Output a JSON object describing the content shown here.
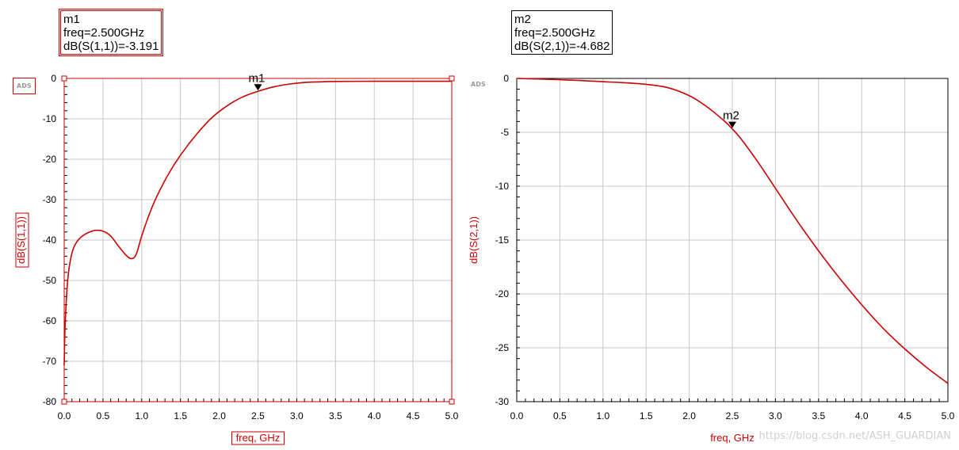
{
  "accent_color": "#cc0000",
  "charts": {
    "left": {
      "marker": {
        "name": "m1",
        "line1": "m1",
        "line2": "freq=2.500GHz",
        "line3": "dB(S(1,1))=-3.191"
      },
      "badge": "ADS"
    },
    "right": {
      "marker": {
        "name": "m2",
        "line1": "m2",
        "line2": "freq=2.500GHz",
        "line3": "dB(S(2,1))=-4.682"
      },
      "badge": "ADS"
    }
  },
  "watermark": "https://blog.csdn.net/ASH_GUARDIAN",
  "chart_data": [
    {
      "type": "line",
      "title": "",
      "xlabel": "freq, GHz",
      "ylabel": "dB(S(1,1))",
      "xlim": [
        0,
        5
      ],
      "ylim": [
        -80,
        0
      ],
      "xticks": [
        0.0,
        0.5,
        1.0,
        1.5,
        2.0,
        2.5,
        3.0,
        3.5,
        4.0,
        4.5,
        5.0
      ],
      "yticks": [
        0,
        -10,
        -20,
        -30,
        -40,
        -50,
        -60,
        -70,
        -80
      ],
      "grid": true,
      "color": "#cc0000",
      "marker": {
        "label": "m1",
        "x": 2.5,
        "y": -3.191
      },
      "series": [
        {
          "x": [
            0.0,
            0.01,
            0.03,
            0.05,
            0.08,
            0.12,
            0.18,
            0.25,
            0.33,
            0.4,
            0.5,
            0.6,
            0.7,
            0.8,
            0.87,
            0.93,
            1.0,
            1.1,
            1.2,
            1.35,
            1.5,
            1.7,
            1.9,
            2.1,
            2.3,
            2.5,
            2.7,
            2.9,
            3.1,
            3.3,
            3.5,
            4.0,
            4.5,
            5.0
          ],
          "values": [
            -71,
            -62,
            -54,
            -49,
            -45,
            -42,
            -40,
            -38.8,
            -38,
            -37.6,
            -37.8,
            -39,
            -41.5,
            -43.8,
            -44.6,
            -43.5,
            -39,
            -33.5,
            -29,
            -23.5,
            -19,
            -14,
            -9.8,
            -6.8,
            -4.6,
            -3.191,
            -2.1,
            -1.4,
            -1.0,
            -0.85,
            -0.75,
            -0.7,
            -0.7,
            -0.7
          ]
        }
      ]
    },
    {
      "type": "line",
      "title": "",
      "xlabel": "freq, GHz",
      "ylabel": "dB(S(2,1))",
      "xlim": [
        0,
        5
      ],
      "ylim": [
        -30,
        0
      ],
      "xticks": [
        0.0,
        0.5,
        1.0,
        1.5,
        2.0,
        2.5,
        3.0,
        3.5,
        4.0,
        4.5,
        5.0
      ],
      "yticks": [
        0,
        -5,
        -10,
        -15,
        -20,
        -25,
        -30
      ],
      "grid": true,
      "color": "#cc0000",
      "marker": {
        "label": "m2",
        "x": 2.5,
        "y": -4.682
      },
      "series": [
        {
          "x": [
            0.0,
            0.25,
            0.5,
            0.75,
            1.0,
            1.25,
            1.5,
            1.75,
            2.0,
            2.2,
            2.4,
            2.5,
            2.6,
            2.8,
            3.0,
            3.25,
            3.5,
            3.75,
            4.0,
            4.25,
            4.5,
            4.75,
            5.0
          ],
          "values": [
            0.0,
            -0.05,
            -0.12,
            -0.2,
            -0.3,
            -0.4,
            -0.55,
            -0.85,
            -1.6,
            -2.6,
            -3.9,
            -4.682,
            -5.6,
            -7.8,
            -10.2,
            -13.2,
            -16.0,
            -18.6,
            -21.0,
            -23.2,
            -25.1,
            -26.8,
            -28.3
          ]
        }
      ]
    }
  ]
}
